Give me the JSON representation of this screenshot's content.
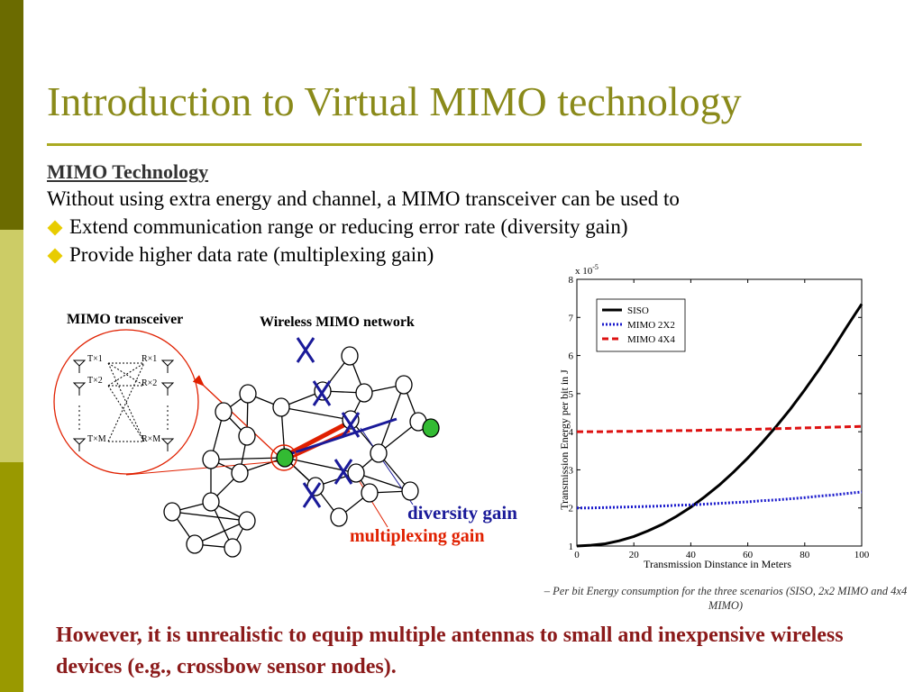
{
  "slide": {
    "title": "Introduction to Virtual MIMO technology",
    "subtitle": "MIMO Technology",
    "intro": "Without using extra energy and channel, a MIMO transceiver can be used to",
    "bullets": [
      "Extend communication range or reducing error rate (diversity gain)",
      "Provide higher data rate (multiplexing gain)"
    ],
    "conclusion": "However, it is unrealistic to equip multiple antennas to small and inexpensive wireless devices (e.g., crossbow sensor nodes)."
  },
  "diagram": {
    "transceiver_label": "MIMO transceiver",
    "network_label": "Wireless MIMO  network",
    "tx_labels": [
      "T×1",
      "T×2",
      "T×M"
    ],
    "rx_labels": [
      "R×1",
      "R×2",
      "R×M"
    ],
    "diversity_label": "diversity gain",
    "multiplexing_label": "multiplexing gain"
  },
  "colors": {
    "title": "#8a8a1a",
    "diversity": "#1a1a99",
    "multiplexing": "#e02000",
    "conclusion": "#8b1a1a"
  },
  "chart_data": {
    "type": "line",
    "xlabel": "Transmission Dinstance in Meters",
    "ylabel": "Transmission Energy per bit in J",
    "multiplier": "x 10-5",
    "xlim": [
      0,
      100
    ],
    "ylim": [
      1,
      8
    ],
    "xticks": [
      0,
      20,
      40,
      60,
      80,
      100
    ],
    "yticks": [
      1,
      2,
      3,
      4,
      5,
      6,
      7,
      8
    ],
    "legend_position": "top-left",
    "x": [
      0,
      5,
      10,
      15,
      20,
      25,
      30,
      35,
      40,
      45,
      50,
      55,
      60,
      65,
      70,
      75,
      80,
      85,
      90,
      95,
      100
    ],
    "series": [
      {
        "name": "SISO",
        "color": "#000000",
        "style": "solid",
        "values": [
          1.0,
          1.02,
          1.06,
          1.14,
          1.25,
          1.4,
          1.57,
          1.78,
          2.02,
          2.3,
          2.6,
          2.94,
          3.31,
          3.71,
          4.14,
          4.6,
          5.1,
          5.63,
          6.19,
          6.78,
          7.35
        ]
      },
      {
        "name": "MIMO 2X2",
        "color": "#1a1acc",
        "style": "dotted",
        "values": [
          2.0,
          2.0,
          2.01,
          2.02,
          2.03,
          2.04,
          2.05,
          2.07,
          2.08,
          2.1,
          2.12,
          2.14,
          2.16,
          2.19,
          2.21,
          2.24,
          2.27,
          2.31,
          2.34,
          2.38,
          2.42
        ]
      },
      {
        "name": "MIMO 4X4",
        "color": "#dd1111",
        "style": "dashed",
        "values": [
          4.0,
          4.0,
          4.0,
          4.01,
          4.01,
          4.02,
          4.02,
          4.03,
          4.03,
          4.04,
          4.05,
          4.05,
          4.06,
          4.07,
          4.08,
          4.09,
          4.1,
          4.11,
          4.12,
          4.13,
          4.14
        ]
      }
    ]
  },
  "chart_caption": "– Per bit Energy consumption for the three scenarios (SISO, 2x2 MIMO and 4x4 MIMO)"
}
